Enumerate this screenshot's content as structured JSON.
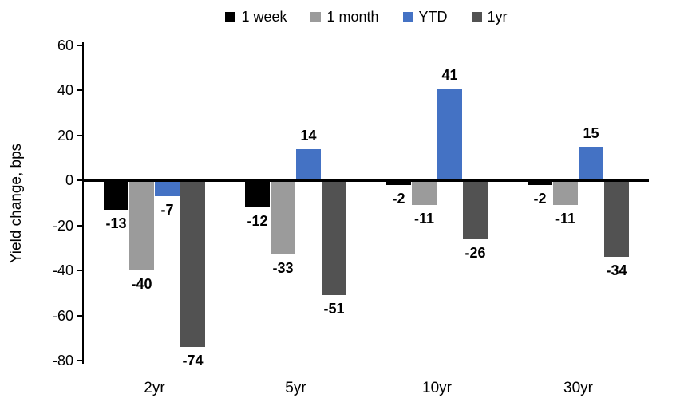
{
  "chart_data": {
    "type": "bar",
    "title": "",
    "ylabel": "Yield change, bps",
    "xlabel": "",
    "categories": [
      "2yr",
      "5yr",
      "10yr",
      "30yr"
    ],
    "series": [
      {
        "name": "1 week",
        "color": "#000000",
        "values": [
          -13,
          -12,
          -2,
          -2
        ]
      },
      {
        "name": "1 month",
        "color": "#9b9b9b",
        "values": [
          -40,
          -33,
          -11,
          -11
        ]
      },
      {
        "name": "YTD",
        "color": "#4472c4",
        "values": [
          -7,
          14,
          41,
          15
        ]
      },
      {
        "name": "1yr",
        "color": "#525252",
        "values": [
          -74,
          -51,
          -26,
          -34
        ]
      }
    ],
    "ylim": [
      -80,
      60
    ],
    "yticks": [
      60,
      40,
      20,
      0,
      -20,
      -40,
      -60,
      -80
    ],
    "grid": false,
    "legend_position": "top",
    "data_labels": "outside-end-bold",
    "axis_color": "#000000",
    "background_color": "#ffffff"
  }
}
